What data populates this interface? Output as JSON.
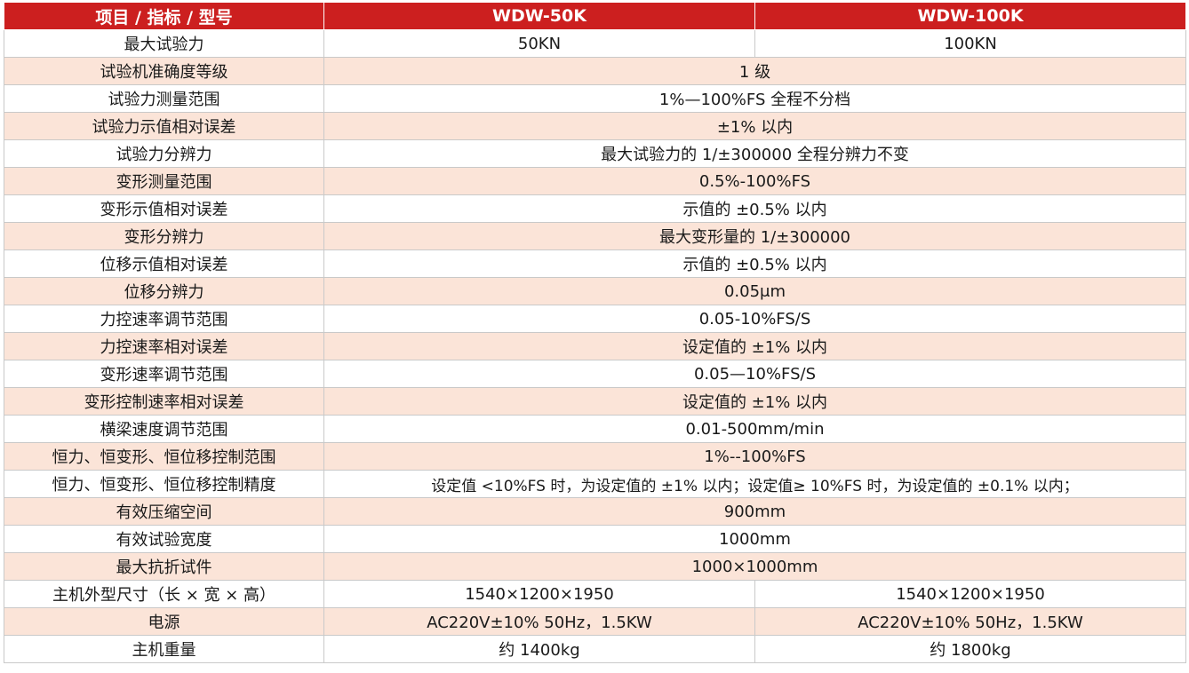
{
  "header": {
    "col_item": "项目 / 指标 / 型号",
    "col_model1": "WDW-50K",
    "col_model2": "WDW-100K"
  },
  "rows": [
    {
      "label": "最大试验力",
      "v1": "50KN",
      "v2": "100KN"
    },
    {
      "label": "试验机准确度等级",
      "value": "1 级"
    },
    {
      "label": "试验力测量范围",
      "value": "1%—100%FS 全程不分档"
    },
    {
      "label": "试验力示值相对误差",
      "value": "±1% 以内"
    },
    {
      "label": "试验力分辨力",
      "value": "最大试验力的 1/±300000 全程分辨力不变"
    },
    {
      "label": "变形测量范围",
      "value": "0.5%-100%FS"
    },
    {
      "label": "变形示值相对误差",
      "value": "示值的 ±0.5% 以内"
    },
    {
      "label": "变形分辨力",
      "value": "最大变形量的 1/±300000"
    },
    {
      "label": "位移示值相对误差",
      "value": "示值的 ±0.5% 以内"
    },
    {
      "label": "位移分辨力",
      "value": "0.05μm"
    },
    {
      "label": "力控速率调节范围",
      "value": "0.05-10%FS/S"
    },
    {
      "label": "力控速率相对误差",
      "value": "设定值的 ±1% 以内"
    },
    {
      "label": "变形速率调节范围",
      "value": "0.05—10%FS/S"
    },
    {
      "label": "变形控制速率相对误差",
      "value": "设定值的 ±1% 以内"
    },
    {
      "label": "横梁速度调节范围",
      "value": "0.01-500mm/min"
    },
    {
      "label": "恒力、恒变形、恒位移控制范围",
      "value": "1%--100%FS"
    },
    {
      "label": "恒力、恒变形、恒位移控制精度",
      "value": "设定值 <10%FS 时，为设定值的 ±1% 以内；设定值≥ 10%FS 时，为设定值的 ±0.1% 以内；"
    },
    {
      "label": "有效压缩空间",
      "value": "900mm"
    },
    {
      "label": "有效试验宽度",
      "value": "1000mm"
    },
    {
      "label": "最大抗折试件",
      "value": "1000×1000mm"
    },
    {
      "label": "主机外型尺寸（长 × 宽 × 高）",
      "v1": "1540×1200×1950",
      "v2": "1540×1200×1950"
    },
    {
      "label": "电源",
      "v1": "AC220V±10% 50Hz，1.5KW",
      "v2": "AC220V±10% 50Hz，1.5KW"
    },
    {
      "label": "主机重量",
      "v1": "约 1400kg",
      "v2": "约 1800kg"
    }
  ],
  "colors": {
    "header_bg": "#cc1f1f",
    "row_alt_bg": "#fbe4d8",
    "row_bg": "#ffffff"
  }
}
